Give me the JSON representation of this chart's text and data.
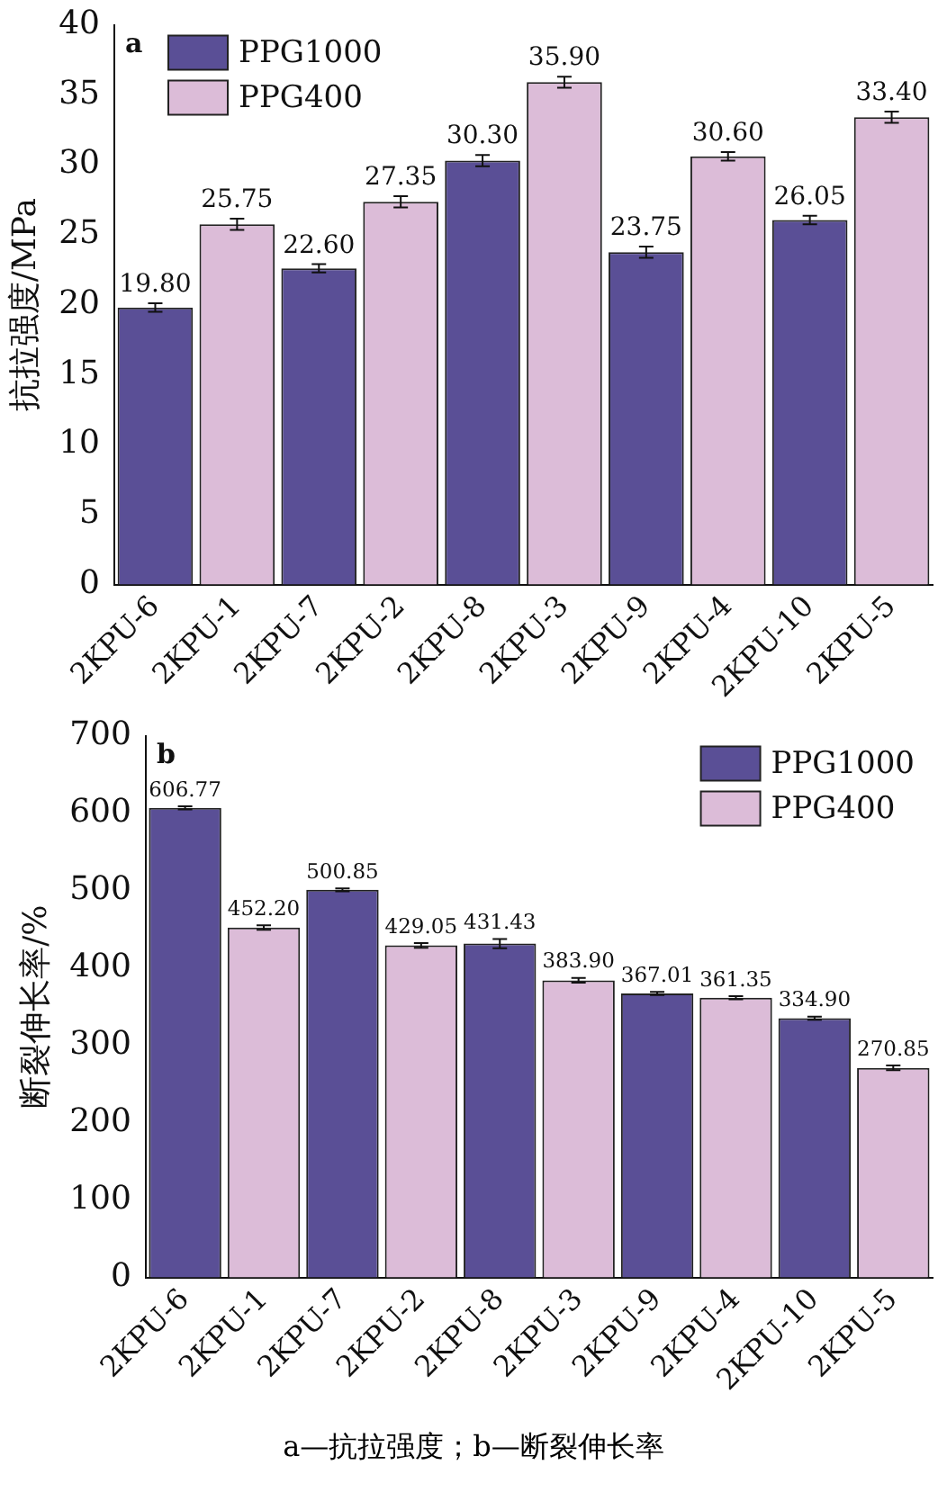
{
  "chart_data": [
    {
      "type": "bar",
      "title": "a",
      "ylabel": "抗拉强度/MPa",
      "categories": [
        "2KPU-6",
        "2KPU-1",
        "2KPU-7",
        "2KPU-2",
        "2KPU-8",
        "2KPU-3",
        "2KPU-9",
        "2KPU-4",
        "2KPU-10",
        "2KPU-5"
      ],
      "series": [
        {
          "name": "PPG1000",
          "color": "#5a4f96",
          "values": [
            19.8,
            null,
            22.6,
            null,
            30.3,
            null,
            23.75,
            null,
            26.05,
            null
          ],
          "value_labels": [
            "19.80",
            null,
            "22.60",
            null,
            "30.30",
            null,
            "23.75",
            null,
            "26.05",
            null
          ],
          "errors": [
            0.3,
            null,
            0.3,
            null,
            0.4,
            null,
            0.4,
            null,
            0.3,
            null
          ]
        },
        {
          "name": "PPG400",
          "color": "#dcbcd8",
          "values": [
            null,
            25.75,
            null,
            27.35,
            null,
            35.9,
            null,
            30.6,
            null,
            33.4
          ],
          "value_labels": [
            null,
            "25.75",
            null,
            "27.35",
            null,
            "35.90",
            null,
            "30.60",
            null,
            "33.40"
          ],
          "errors": [
            null,
            0.4,
            null,
            0.4,
            null,
            0.4,
            null,
            0.3,
            null,
            0.4
          ]
        }
      ],
      "ylim": [
        0,
        40
      ],
      "yticks": [
        0,
        5,
        10,
        15,
        20,
        25,
        30,
        35,
        40
      ],
      "grid": false,
      "legend": "top left"
    },
    {
      "type": "bar",
      "title": "b",
      "ylabel": "断裂伸长率/%",
      "categories": [
        "2KPU-6",
        "2KPU-1",
        "2KPU-7",
        "2KPU-2",
        "2KPU-8",
        "2KPU-3",
        "2KPU-9",
        "2KPU-4",
        "2KPU-10",
        "2KPU-5"
      ],
      "series": [
        {
          "name": "PPG1000",
          "color": "#5a4f96",
          "values": [
            606.77,
            null,
            500.85,
            null,
            431.43,
            null,
            367.01,
            null,
            334.9,
            null
          ],
          "value_labels": [
            "606.77",
            null,
            "500.85",
            null,
            "431.43",
            null,
            "367.01",
            null,
            "334.90",
            null
          ],
          "errors": [
            2,
            null,
            2,
            null,
            6,
            null,
            2,
            null,
            2,
            null
          ]
        },
        {
          "name": "PPG400",
          "color": "#dcbcd8",
          "values": [
            null,
            452.2,
            null,
            429.05,
            null,
            383.9,
            null,
            361.35,
            null,
            270.85
          ],
          "value_labels": [
            null,
            "452.20",
            null,
            "429.05",
            null,
            "383.90",
            null,
            "361.35",
            null,
            "270.85"
          ],
          "errors": [
            null,
            3,
            null,
            3,
            null,
            3,
            null,
            2,
            null,
            3
          ]
        }
      ],
      "ylim": [
        0,
        700
      ],
      "yticks": [
        0,
        100,
        200,
        300,
        400,
        500,
        600,
        700
      ],
      "grid": false,
      "legend": "top right",
      "annotations": [
        "a—抗拉强度；b—断裂伸长率"
      ]
    }
  ]
}
